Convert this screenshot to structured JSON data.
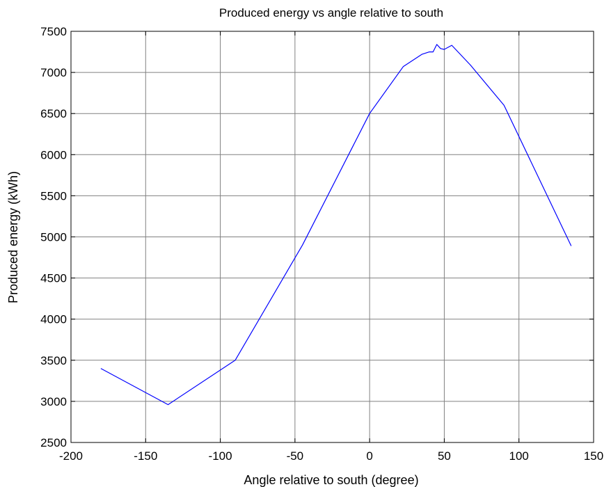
{
  "chart_data": {
    "type": "line",
    "title": "Produced energy vs angle relative to south",
    "xlabel": "Angle relative to south (degree)",
    "ylabel": "Produced energy (kWh)",
    "xlim": [
      -200,
      150
    ],
    "ylim": [
      2500,
      7500
    ],
    "xticks": [
      -200,
      -150,
      -100,
      -50,
      0,
      50,
      100,
      150
    ],
    "yticks": [
      2500,
      3000,
      3500,
      4000,
      4500,
      5000,
      5500,
      6000,
      6500,
      7000,
      7500
    ],
    "xtick_labels": [
      "-200",
      "-150",
      "-100",
      "-50",
      "0",
      "50",
      "100",
      "150"
    ],
    "ytick_labels": [
      "2500",
      "3000",
      "3500",
      "4000",
      "4500",
      "5000",
      "5500",
      "6000",
      "6500",
      "7000",
      "7500"
    ],
    "grid": true,
    "line_color": "#0000ff",
    "series": [
      {
        "x": [
          -180,
          -135,
          -90,
          -45,
          0,
          22.5,
          35,
          40,
          42.5,
          45,
          47.5,
          50,
          55,
          67.5,
          90,
          135
        ],
        "y": [
          3400,
          2960,
          3500,
          4900,
          6500,
          7070,
          7220,
          7250,
          7250,
          7340,
          7290,
          7280,
          7330,
          7090,
          6600,
          4890
        ]
      }
    ]
  }
}
